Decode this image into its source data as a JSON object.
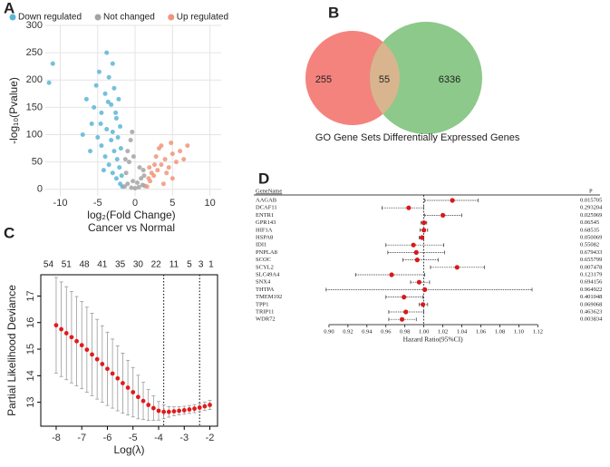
{
  "chart_data": [
    {
      "type": "scatter",
      "panel": "A",
      "subtitle": "Cancer vs Normal",
      "xlabel": "log₂(Fold Change)",
      "ylabel": "-log₁₀(Pvalue)",
      "xlim": [
        -12,
        11.5
      ],
      "ylim": [
        -12,
        300
      ],
      "xticks": [
        -10,
        -5,
        0,
        5,
        10
      ],
      "yticks": [
        0,
        50,
        100,
        150,
        200,
        250,
        300
      ],
      "grid": true,
      "legend": "top",
      "series": [
        {
          "name": "Down regulated",
          "color": "#5ab6d6",
          "x": [
            -11,
            -11.5,
            -6.5,
            -5.2,
            -4.8,
            -4.5,
            -4,
            -3.8,
            -3.5,
            -3.2,
            -3,
            -2.8,
            -2.5,
            -2.2,
            -2,
            -5.8,
            -5,
            -4.5,
            -4,
            -3.5,
            -3,
            -2.5,
            -2,
            -1.7,
            -3.8,
            -3.2,
            -2.8,
            -2.4,
            -2.1,
            -1.8,
            -6,
            -7,
            -4.2,
            -3,
            -1.9,
            -2.6,
            -4.6,
            -3.6,
            -2.3,
            -5.5
          ],
          "values": [
            230,
            195,
            165,
            190,
            215,
            140,
            175,
            250,
            205,
            155,
            230,
            185,
            130,
            165,
            115,
            120,
            95,
            80,
            60,
            45,
            30,
            20,
            10,
            5,
            110,
            90,
            70,
            55,
            40,
            25,
            70,
            100,
            35,
            105,
            75,
            140,
            120,
            160,
            95,
            150
          ]
        },
        {
          "name": "Not changed",
          "color": "#a3a3a3",
          "x": [
            -1.4,
            -1,
            -0.5,
            0,
            0.5,
            1,
            1.3,
            -1.2,
            -0.8,
            -0.3,
            0.3,
            0.8,
            1.2,
            -1,
            -0.6,
            -0.4,
            -1.3,
            0.6,
            1.1,
            -0.2
          ],
          "values": [
            5,
            10,
            3,
            2,
            4,
            8,
            6,
            30,
            50,
            15,
            12,
            20,
            25,
            70,
            90,
            105,
            55,
            40,
            35,
            60
          ]
        },
        {
          "name": "Up regulated",
          "color": "#f0957a",
          "x": [
            1.6,
            2,
            2.5,
            3,
            3.5,
            4,
            4.5,
            5,
            5.5,
            6,
            7,
            3.2,
            2.8,
            2.2,
            1.8,
            4.2,
            3.8,
            5,
            6.5,
            2.6,
            3.5,
            4.8,
            1.9
          ],
          "values": [
            5,
            15,
            25,
            35,
            45,
            55,
            40,
            65,
            50,
            70,
            80,
            75,
            60,
            30,
            20,
            30,
            10,
            20,
            55,
            45,
            80,
            85,
            40
          ]
        }
      ]
    },
    {
      "type": "venn",
      "panel": "B",
      "sets": [
        {
          "name": "GO Gene Sets",
          "color": "#f4837d"
        },
        {
          "name": "Differentially Expressed Genes",
          "color": "#8cc98a"
        }
      ],
      "counts": [
        255,
        55,
        6336
      ],
      "overlap_color": "#d8b58e"
    },
    {
      "type": "line",
      "panel": "C",
      "xlabel": "Log(λ)",
      "ylabel": "Partial Likelihood Deviance",
      "x": [
        -8,
        -7.8,
        -7.6,
        -7.4,
        -7.2,
        -7,
        -6.8,
        -6.6,
        -6.4,
        -6.2,
        -6,
        -5.8,
        -5.6,
        -5.4,
        -5.2,
        -5,
        -4.8,
        -4.6,
        -4.4,
        -4.2,
        -4,
        -3.8,
        -3.6,
        -3.4,
        -3.2,
        -3,
        -2.8,
        -2.6,
        -2.4,
        -2.2,
        -2
      ],
      "values": [
        15.9,
        15.75,
        15.6,
        15.45,
        15.3,
        15.15,
        14.98,
        14.8,
        14.62,
        14.44,
        14.26,
        14.08,
        13.9,
        13.72,
        13.55,
        13.38,
        13.2,
        13.05,
        12.9,
        12.78,
        12.68,
        12.64,
        12.64,
        12.66,
        12.68,
        12.7,
        12.73,
        12.76,
        12.8,
        12.85,
        12.9
      ],
      "errors": [
        1.8,
        1.78,
        1.75,
        1.72,
        1.68,
        1.64,
        1.6,
        1.55,
        1.5,
        1.44,
        1.38,
        1.3,
        1.22,
        1.13,
        1.03,
        0.93,
        0.82,
        0.7,
        0.58,
        0.46,
        0.35,
        0.26,
        0.2,
        0.17,
        0.15,
        0.15,
        0.15,
        0.15,
        0.15,
        0.16,
        0.17
      ],
      "color": "#e31a1c",
      "error_color": "#9a9a9a",
      "xlim": [
        -8.6,
        -1.7
      ],
      "ylim": [
        12.1,
        17.8
      ],
      "xticks": [
        -8,
        -7,
        -6,
        -5,
        -4,
        -3,
        -2
      ],
      "yticks": [
        13,
        14,
        15,
        16,
        17
      ],
      "top_ticks": [
        {
          "value": -8.3,
          "label": "54"
        },
        {
          "value": -7.6,
          "label": "51"
        },
        {
          "value": -6.9,
          "label": "48"
        },
        {
          "value": -6.2,
          "label": "41"
        },
        {
          "value": -5.5,
          "label": "35"
        },
        {
          "value": -4.8,
          "label": "30"
        },
        {
          "value": -4.1,
          "label": "22"
        },
        {
          "value": -3.4,
          "label": "11"
        },
        {
          "value": -2.8,
          "label": "5"
        },
        {
          "value": -2.35,
          "label": "3"
        },
        {
          "value": -1.95,
          "label": "1"
        }
      ],
      "vlines": [
        -3.8,
        -2.4
      ]
    },
    {
      "type": "forest",
      "panel": "D",
      "header": [
        "GeneName",
        "P"
      ],
      "xlabel": "Hazard Ratio(95%CI)",
      "categories": [
        "AAGAB",
        "DCAF11",
        "ENTR1",
        "GPR143",
        "HIF1A",
        "HSPA8",
        "IDI1",
        "PNPLA8",
        "SCOC",
        "SCYL2",
        "SLC49A4",
        "SNX4",
        "THTPA",
        "TMEM192",
        "TPP1",
        "TRIP11",
        "WDR72"
      ],
      "values": [
        1.03,
        0.984,
        1.02,
        1.0,
        1.0,
        0.998,
        0.989,
        0.992,
        0.993,
        1.035,
        0.966,
        0.995,
        1.001,
        0.979,
        0.999,
        0.981,
        0.977
      ],
      "lower": [
        1.001,
        0.956,
        1.001,
        0.997,
        0.996,
        0.995,
        0.96,
        0.962,
        0.978,
        1.007,
        0.928,
        0.986,
        0.897,
        0.96,
        0.995,
        0.963,
        0.963
      ],
      "upper": [
        1.057,
        1.0,
        1.04,
        1.003,
        1.004,
        1.0,
        1.021,
        1.022,
        1.015,
        1.064,
        1.001,
        1.006,
        1.114,
        0.999,
        1.004,
        1.0,
        0.992
      ],
      "p_values": [
        0.015705,
        0.293204,
        0.025969,
        0.06545,
        0.68535,
        0.050069,
        0.55082,
        0.679433,
        0.655799,
        0.007478,
        0.123179,
        0.694156,
        0.964922,
        0.401048,
        0.069068,
        0.463623,
        0.003834
      ],
      "ref": 1,
      "color": "#d7191c",
      "xlim": [
        0.88,
        1.135
      ],
      "xticks": [
        {
          "value": 0.9,
          "label": "0.90"
        },
        {
          "value": 0.92,
          "label": "0.92"
        },
        {
          "value": 0.94,
          "label": "0.94"
        },
        {
          "value": 0.96,
          "label": "0.96"
        },
        {
          "value": 0.98,
          "label": "0.98"
        },
        {
          "value": 1.0,
          "label": "1.00"
        },
        {
          "value": 1.02,
          "label": "1.02"
        },
        {
          "value": 1.04,
          "label": "1.04"
        },
        {
          "value": 1.06,
          "label": "1.06"
        },
        {
          "value": 1.08,
          "label": "1.08"
        },
        {
          "value": 1.1,
          "label": "1.10"
        },
        {
          "value": 1.12,
          "label": "1.12"
        }
      ]
    }
  ]
}
